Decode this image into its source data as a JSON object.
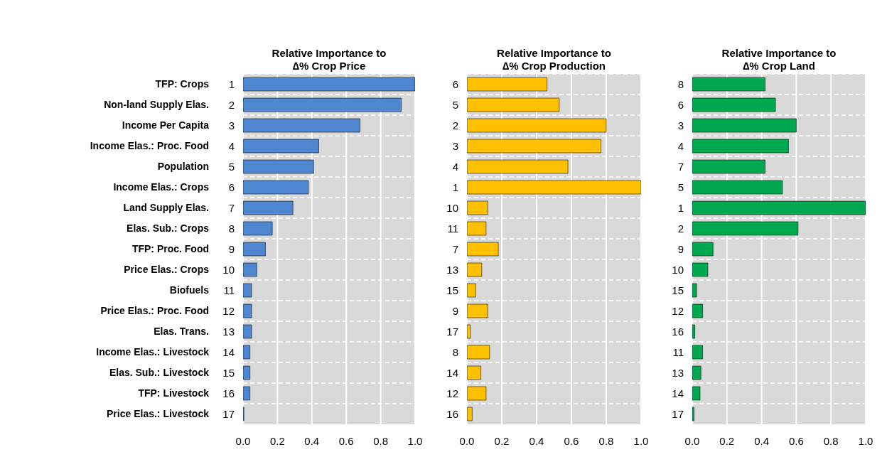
{
  "chart_data": [
    {
      "type": "bar",
      "orientation": "horizontal",
      "title": "Relative Importance to\n∆% Crop Price",
      "categories": [
        "TFP: Crops",
        "Non-land Supply Elas.",
        "Income Per Capita",
        "Income Elas.: Proc. Food",
        "Population",
        "Income Elas.: Crops",
        "Land Supply Elas.",
        "Elas. Sub.: Crops",
        "TFP: Proc. Food",
        "Price Elas.: Crops",
        "Biofuels",
        "Price Elas.: Proc. Food",
        "Elas. Trans.",
        "Income Elas.: Livestock",
        "Elas. Sub.: Livestock",
        "TFP: Livestock",
        "Price Elas.: Livestock"
      ],
      "y2_categories": [
        "1",
        "2",
        "3",
        "4",
        "5",
        "6",
        "7",
        "8",
        "9",
        "10",
        "11",
        "12",
        "13",
        "14",
        "15",
        "16",
        "17"
      ],
      "values": [
        1.0,
        0.92,
        0.68,
        0.44,
        0.41,
        0.38,
        0.29,
        0.17,
        0.13,
        0.08,
        0.05,
        0.05,
        0.05,
        0.04,
        0.04,
        0.04,
        0.005
      ],
      "color": "#4f86d0",
      "xlim": [
        0,
        1
      ],
      "xticks": [
        {
          "value": 0,
          "label": "0.0"
        },
        {
          "value": 0.2,
          "label": "0.2"
        },
        {
          "value": 0.4,
          "label": "0.4"
        },
        {
          "value": 0.6,
          "label": "0.6"
        },
        {
          "value": 0.8,
          "label": "0.8"
        },
        {
          "value": 1,
          "label": "1.0"
        }
      ],
      "grid": true
    },
    {
      "type": "bar",
      "orientation": "horizontal",
      "title": "Relative Importance to\n∆% Crop Production",
      "categories": [
        "6",
        "5",
        "2",
        "3",
        "4",
        "1",
        "10",
        "11",
        "7",
        "13",
        "15",
        "9",
        "17",
        "8",
        "14",
        "12",
        "16"
      ],
      "values": [
        0.46,
        0.53,
        0.8,
        0.77,
        0.58,
        1.0,
        0.12,
        0.11,
        0.18,
        0.085,
        0.05,
        0.12,
        0.02,
        0.13,
        0.08,
        0.11,
        0.03
      ],
      "color": "#ffc000",
      "xlim": [
        0,
        1
      ],
      "xticks": [
        {
          "value": 0,
          "label": "0.0"
        },
        {
          "value": 0.2,
          "label": "0.2"
        },
        {
          "value": 0.4,
          "label": "0.4"
        },
        {
          "value": 0.6,
          "label": "0.6"
        },
        {
          "value": 0.8,
          "label": "0.8"
        },
        {
          "value": 1,
          "label": "1.0"
        }
      ],
      "grid": true
    },
    {
      "type": "bar",
      "orientation": "horizontal",
      "title": "Relative Importance to\n∆% Crop Land",
      "categories": [
        "8",
        "6",
        "3",
        "4",
        "7",
        "5",
        "1",
        "2",
        "9",
        "10",
        "15",
        "12",
        "16",
        "11",
        "13",
        "14",
        "17"
      ],
      "values": [
        0.42,
        0.48,
        0.6,
        0.555,
        0.42,
        0.52,
        1.0,
        0.61,
        0.12,
        0.09,
        0.025,
        0.06,
        0.015,
        0.06,
        0.05,
        0.045,
        0.01
      ],
      "color": "#00a84f",
      "xlim": [
        0,
        1
      ],
      "xticks": [
        {
          "value": 0,
          "label": "0.0"
        },
        {
          "value": 0.2,
          "label": "0.2"
        },
        {
          "value": 0.4,
          "label": "0.4"
        },
        {
          "value": 0.6,
          "label": "0.6"
        },
        {
          "value": 0.8,
          "label": "0.8"
        },
        {
          "value": 1,
          "label": "1.0"
        }
      ],
      "grid": true
    }
  ]
}
